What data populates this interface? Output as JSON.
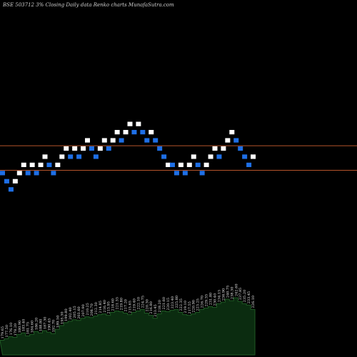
{
  "chart_data": {
    "type": "renko",
    "title": "BSE 503712 3% Closing Daily data Renko charts MunafaSutra.com",
    "colors": {
      "background": "#000000",
      "up_brick": "#ffffff",
      "down_brick": "#1e6fe6",
      "reference_line": "#b5542a",
      "volume_area": "#0b2c10",
      "volume_top": "#1f5a24",
      "label_text": "#e8e8e8"
    },
    "reference_levels": [
      103.5,
      99.0
    ],
    "price_range": [
      70,
      125
    ],
    "bricks": [
      {
        "dir": "down",
        "price": 98.5
      },
      {
        "dir": "down",
        "price": 97.0
      },
      {
        "dir": "down",
        "price": 95.5
      },
      {
        "dir": "up",
        "price": 97.0
      },
      {
        "dir": "up",
        "price": 98.5
      },
      {
        "dir": "up",
        "price": 100.0
      },
      {
        "dir": "down",
        "price": 98.5
      },
      {
        "dir": "up",
        "price": 100.0
      },
      {
        "dir": "down",
        "price": 98.5
      },
      {
        "dir": "up",
        "price": 100.0
      },
      {
        "dir": "up",
        "price": 101.5
      },
      {
        "dir": "down",
        "price": 100.0
      },
      {
        "dir": "down",
        "price": 98.5
      },
      {
        "dir": "up",
        "price": 100.0
      },
      {
        "dir": "up",
        "price": 101.5
      },
      {
        "dir": "up",
        "price": 103.0
      },
      {
        "dir": "down",
        "price": 101.5
      },
      {
        "dir": "up",
        "price": 103.0
      },
      {
        "dir": "down",
        "price": 101.5
      },
      {
        "dir": "up",
        "price": 103.0
      },
      {
        "dir": "up",
        "price": 104.5
      },
      {
        "dir": "down",
        "price": 103.0
      },
      {
        "dir": "down",
        "price": 101.5
      },
      {
        "dir": "up",
        "price": 103.0
      },
      {
        "dir": "up",
        "price": 104.5
      },
      {
        "dir": "down",
        "price": 103.0
      },
      {
        "dir": "up",
        "price": 104.5
      },
      {
        "dir": "up",
        "price": 106.0
      },
      {
        "dir": "down",
        "price": 104.5
      },
      {
        "dir": "up",
        "price": 106.0
      },
      {
        "dir": "up",
        "price": 107.5
      },
      {
        "dir": "down",
        "price": 106.0
      },
      {
        "dir": "up",
        "price": 107.5
      },
      {
        "dir": "down",
        "price": 106.0
      },
      {
        "dir": "down",
        "price": 104.5
      },
      {
        "dir": "up",
        "price": 106.0
      },
      {
        "dir": "down",
        "price": 104.5
      },
      {
        "dir": "down",
        "price": 103.0
      },
      {
        "dir": "down",
        "price": 101.5
      },
      {
        "dir": "up",
        "price": 100.0
      },
      {
        "dir": "down",
        "price": 100.0
      },
      {
        "dir": "down",
        "price": 98.5
      },
      {
        "dir": "up",
        "price": 100.0
      },
      {
        "dir": "down",
        "price": 98.5
      },
      {
        "dir": "up",
        "price": 100.0
      },
      {
        "dir": "up",
        "price": 101.5
      },
      {
        "dir": "down",
        "price": 100.0
      },
      {
        "dir": "down",
        "price": 98.5
      },
      {
        "dir": "up",
        "price": 100.0
      },
      {
        "dir": "up",
        "price": 101.5
      },
      {
        "dir": "up",
        "price": 103.0
      },
      {
        "dir": "down",
        "price": 101.5
      },
      {
        "dir": "up",
        "price": 103.0
      },
      {
        "dir": "up",
        "price": 104.5
      },
      {
        "dir": "up",
        "price": 106.0
      },
      {
        "dir": "down",
        "price": 104.5
      },
      {
        "dir": "down",
        "price": 103.0
      },
      {
        "dir": "down",
        "price": 101.5
      },
      {
        "dir": "down",
        "price": 100.0
      },
      {
        "dir": "up",
        "price": 101.5
      }
    ],
    "volume": [
      20,
      22,
      25,
      24,
      28,
      30,
      26,
      28,
      32,
      30,
      33,
      31,
      29,
      35,
      40,
      44,
      46,
      48,
      47,
      50,
      52,
      51,
      53,
      55,
      56,
      54,
      58,
      60,
      59,
      57,
      55,
      58,
      60,
      62,
      57,
      54,
      50,
      56,
      60,
      59,
      61,
      62,
      58,
      55,
      54,
      56,
      58,
      62,
      64,
      66,
      65,
      70,
      72,
      76,
      74,
      78,
      73,
      70,
      68,
      62
    ],
    "volume_labels": [
      "179.65",
      "177.50",
      "176.10",
      "178.20",
      "180.90",
      "183.40",
      "181.75",
      "184.60",
      "186.20",
      "188.80",
      "187.30",
      "190.45",
      "192.70",
      "189.50",
      "195.30",
      "199.80",
      "202.40",
      "205.15",
      "203.60",
      "207.90",
      "210.25",
      "208.70",
      "212.30",
      "214.85",
      "216.40",
      "213.95",
      "218.60",
      "221.35",
      "219.80",
      "217.20",
      "215.65",
      "219.40",
      "222.10",
      "224.75",
      "220.30",
      "216.80",
      "213.45",
      "218.20",
      "221.60",
      "220.15",
      "223.40",
      "225.80",
      "222.35",
      "219.10",
      "217.55",
      "220.90",
      "223.25",
      "226.70",
      "229.35",
      "231.80",
      "230.40",
      "234.15",
      "236.90",
      "240.75",
      "238.30",
      "242.60",
      "237.85",
      "235.20",
      "233.45",
      "226.10"
    ]
  }
}
